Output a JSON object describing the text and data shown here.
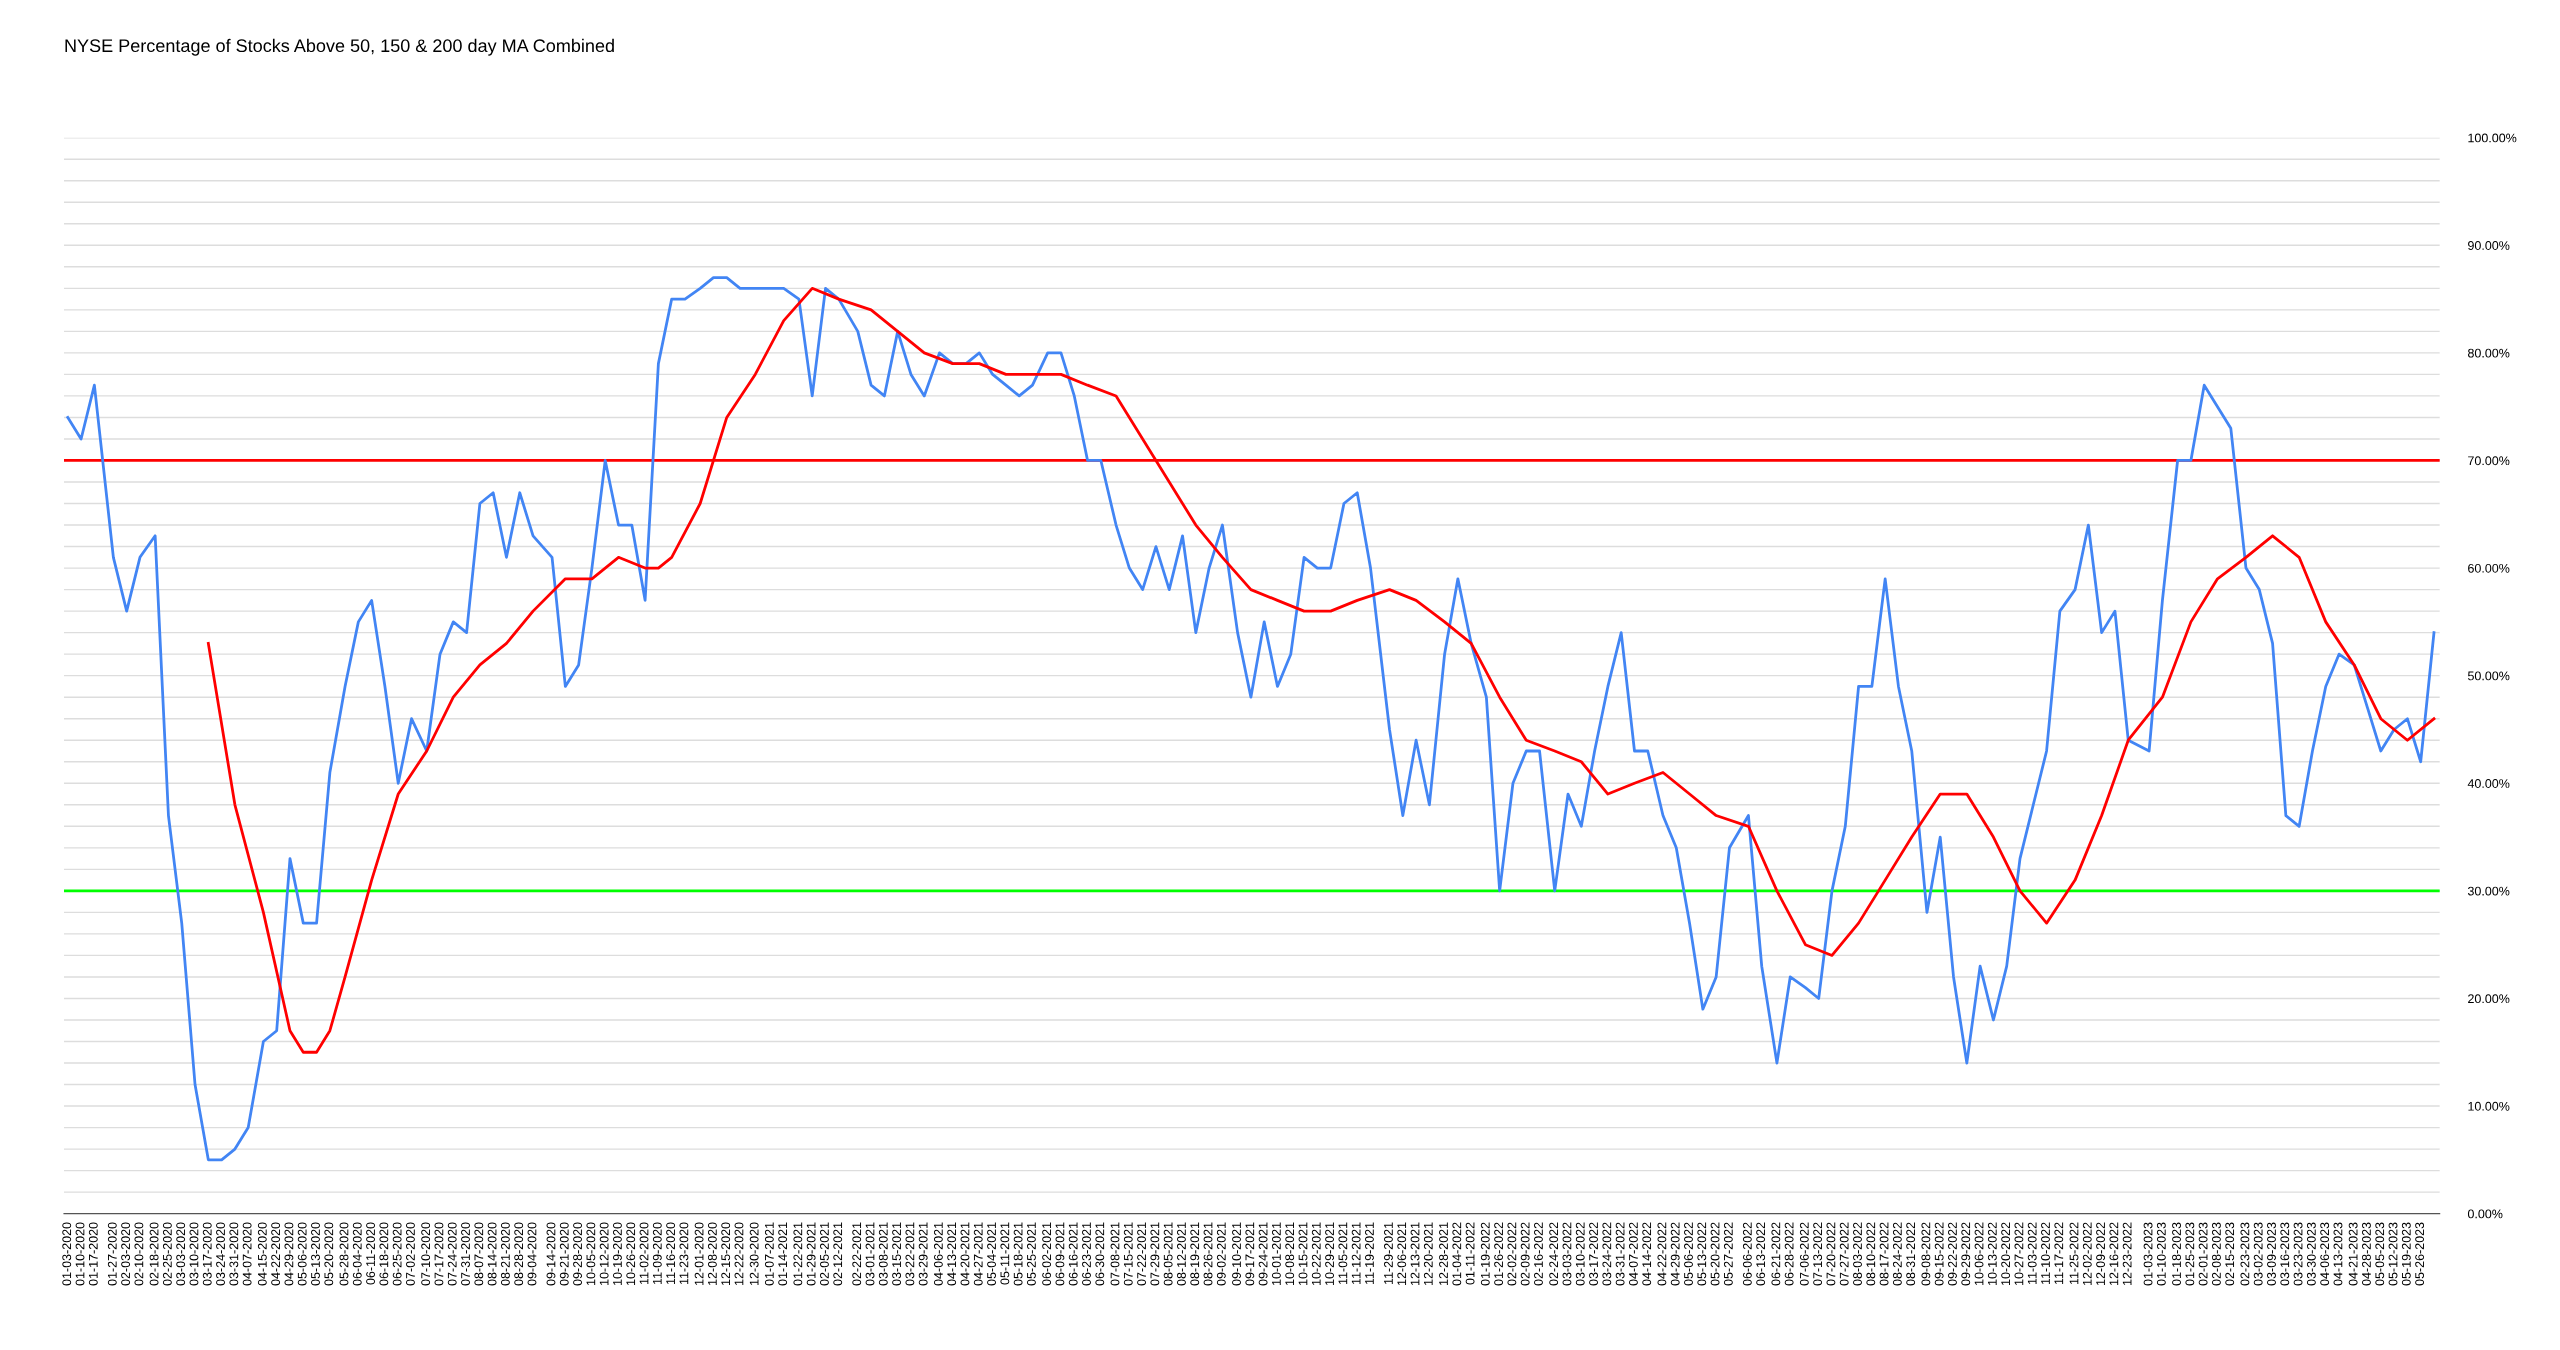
{
  "chart_data": {
    "type": "line",
    "title": "NYSE Percentage of Stocks Above 50, 150 & 200 day MA Combined",
    "xlim": [
      "2020-01-01",
      "2023-06-05"
    ],
    "ylim": [
      0,
      100
    ],
    "yticks": [
      {
        "value": 0,
        "label": "0.00%"
      },
      {
        "value": 2,
        "label": null
      },
      {
        "value": 4,
        "label": null
      },
      {
        "value": 6,
        "label": null
      },
      {
        "value": 8,
        "label": null
      },
      {
        "value": 10,
        "label": "10.00%"
      },
      {
        "value": 12,
        "label": null
      },
      {
        "value": 14,
        "label": null
      },
      {
        "value": 16,
        "label": null
      },
      {
        "value": 18,
        "label": null
      },
      {
        "value": 20,
        "label": "20.00%"
      },
      {
        "value": 22,
        "label": null
      },
      {
        "value": 24,
        "label": null
      },
      {
        "value": 26,
        "label": null
      },
      {
        "value": 28,
        "label": null
      },
      {
        "value": 30,
        "label": "30.00%"
      },
      {
        "value": 32,
        "label": null
      },
      {
        "value": 34,
        "label": null
      },
      {
        "value": 36,
        "label": null
      },
      {
        "value": 38,
        "label": null
      },
      {
        "value": 40,
        "label": "40.00%"
      },
      {
        "value": 42,
        "label": null
      },
      {
        "value": 44,
        "label": null
      },
      {
        "value": 46,
        "label": null
      },
      {
        "value": 48,
        "label": null
      },
      {
        "value": 50,
        "label": "50.00%"
      },
      {
        "value": 52,
        "label": null
      },
      {
        "value": 54,
        "label": null
      },
      {
        "value": 56,
        "label": null
      },
      {
        "value": 58,
        "label": null
      },
      {
        "value": 60,
        "label": "60.00%"
      },
      {
        "value": 62,
        "label": null
      },
      {
        "value": 64,
        "label": null
      },
      {
        "value": 66,
        "label": null
      },
      {
        "value": 68,
        "label": null
      },
      {
        "value": 70,
        "label": "70.00%"
      },
      {
        "value": 72,
        "label": null
      },
      {
        "value": 74,
        "label": null
      },
      {
        "value": 76,
        "label": null
      },
      {
        "value": 78,
        "label": null
      },
      {
        "value": 80,
        "label": "80.00%"
      },
      {
        "value": 82,
        "label": null
      },
      {
        "value": 84,
        "label": null
      },
      {
        "value": 86,
        "label": null
      },
      {
        "value": 88,
        "label": null
      },
      {
        "value": 90,
        "label": "90.00%"
      },
      {
        "value": 92,
        "label": null
      },
      {
        "value": 94,
        "label": null
      },
      {
        "value": 96,
        "label": null
      },
      {
        "value": 98,
        "label": null
      },
      {
        "value": 100,
        "label": "100.00%"
      }
    ],
    "xticks": [
      {
        "value": "2020-01-03",
        "label": "01-03-2020"
      },
      {
        "value": "2020-01-10",
        "label": "01-10-2020"
      },
      {
        "value": "2020-01-17",
        "label": "01-17-2020"
      },
      {
        "value": "2020-01-27",
        "label": "01-27-2020"
      },
      {
        "value": "2020-02-03",
        "label": "02-03-2020"
      },
      {
        "value": "2020-02-10",
        "label": "02-10-2020"
      },
      {
        "value": "2020-02-18",
        "label": "02-18-2020"
      },
      {
        "value": "2020-02-25",
        "label": "02-25-2020"
      },
      {
        "value": "2020-03-03",
        "label": "03-03-2020"
      },
      {
        "value": "2020-03-10",
        "label": "03-10-2020"
      },
      {
        "value": "2020-03-17",
        "label": "03-17-2020"
      },
      {
        "value": "2020-03-24",
        "label": "03-24-2020"
      },
      {
        "value": "2020-03-31",
        "label": "03-31-2020"
      },
      {
        "value": "2020-04-07",
        "label": "04-07-2020"
      },
      {
        "value": "2020-04-15",
        "label": "04-15-2020"
      },
      {
        "value": "2020-04-22",
        "label": "04-22-2020"
      },
      {
        "value": "2020-04-29",
        "label": "04-29-2020"
      },
      {
        "value": "2020-05-06",
        "label": "05-06-2020"
      },
      {
        "value": "2020-05-13",
        "label": "05-13-2020"
      },
      {
        "value": "2020-05-20",
        "label": "05-20-2020"
      },
      {
        "value": "2020-05-28",
        "label": "05-28-2020"
      },
      {
        "value": "2020-06-04",
        "label": "06-04-2020"
      },
      {
        "value": "2020-06-11",
        "label": "06-11-2020"
      },
      {
        "value": "2020-06-18",
        "label": "06-18-2020"
      },
      {
        "value": "2020-06-25",
        "label": "06-25-2020"
      },
      {
        "value": "2020-07-02",
        "label": "07-02-2020"
      },
      {
        "value": "2020-07-10",
        "label": "07-10-2020"
      },
      {
        "value": "2020-07-17",
        "label": "07-17-2020"
      },
      {
        "value": "2020-07-24",
        "label": "07-24-2020"
      },
      {
        "value": "2020-07-31",
        "label": "07-31-2020"
      },
      {
        "value": "2020-08-07",
        "label": "08-07-2020"
      },
      {
        "value": "2020-08-14",
        "label": "08-14-2020"
      },
      {
        "value": "2020-08-21",
        "label": "08-21-2020"
      },
      {
        "value": "2020-08-28",
        "label": "08-28-2020"
      },
      {
        "value": "2020-09-04",
        "label": "09-04-2020"
      },
      {
        "value": "2020-09-14",
        "label": "09-14-2020"
      },
      {
        "value": "2020-09-21",
        "label": "09-21-2020"
      },
      {
        "value": "2020-09-28",
        "label": "09-28-2020"
      },
      {
        "value": "2020-10-05",
        "label": "10-05-2020"
      },
      {
        "value": "2020-10-12",
        "label": "10-12-2020"
      },
      {
        "value": "2020-10-19",
        "label": "10-19-2020"
      },
      {
        "value": "2020-10-26",
        "label": "10-26-2020"
      },
      {
        "value": "2020-11-02",
        "label": "11-02-2020"
      },
      {
        "value": "2020-11-09",
        "label": "11-09-2020"
      },
      {
        "value": "2020-11-16",
        "label": "11-16-2020"
      },
      {
        "value": "2020-11-23",
        "label": "11-23-2020"
      },
      {
        "value": "2020-12-01",
        "label": "12-01-2020"
      },
      {
        "value": "2020-12-08",
        "label": "12-08-2020"
      },
      {
        "value": "2020-12-15",
        "label": "12-15-2020"
      },
      {
        "value": "2020-12-22",
        "label": "12-22-2020"
      },
      {
        "value": "2020-12-30",
        "label": "12-30-2020"
      },
      {
        "value": "2021-01-07",
        "label": "01-07-2021"
      },
      {
        "value": "2021-01-14",
        "label": "01-14-2021"
      },
      {
        "value": "2021-01-22",
        "label": "01-22-2021"
      },
      {
        "value": "2021-01-29",
        "label": "01-29-2021"
      },
      {
        "value": "2021-02-05",
        "label": "02-05-2021"
      },
      {
        "value": "2021-02-12",
        "label": "02-12-2021"
      },
      {
        "value": "2021-02-22",
        "label": "02-22-2021"
      },
      {
        "value": "2021-03-01",
        "label": "03-01-2021"
      },
      {
        "value": "2021-03-08",
        "label": "03-08-2021"
      },
      {
        "value": "2021-03-15",
        "label": "03-15-2021"
      },
      {
        "value": "2021-03-22",
        "label": "03-22-2021"
      },
      {
        "value": "2021-03-29",
        "label": "03-29-2021"
      },
      {
        "value": "2021-04-06",
        "label": "04-06-2021"
      },
      {
        "value": "2021-04-13",
        "label": "04-13-2021"
      },
      {
        "value": "2021-04-20",
        "label": "04-20-2021"
      },
      {
        "value": "2021-04-27",
        "label": "04-27-2021"
      },
      {
        "value": "2021-05-04",
        "label": "05-04-2021"
      },
      {
        "value": "2021-05-11",
        "label": "05-11-2021"
      },
      {
        "value": "2021-05-18",
        "label": "05-18-2021"
      },
      {
        "value": "2021-05-25",
        "label": "05-25-2021"
      },
      {
        "value": "2021-06-02",
        "label": "06-02-2021"
      },
      {
        "value": "2021-06-09",
        "label": "06-09-2021"
      },
      {
        "value": "2021-06-16",
        "label": "06-16-2021"
      },
      {
        "value": "2021-06-23",
        "label": "06-23-2021"
      },
      {
        "value": "2021-06-30",
        "label": "06-30-2021"
      },
      {
        "value": "2021-07-08",
        "label": "07-08-2021"
      },
      {
        "value": "2021-07-15",
        "label": "07-15-2021"
      },
      {
        "value": "2021-07-22",
        "label": "07-22-2021"
      },
      {
        "value": "2021-07-29",
        "label": "07-29-2021"
      },
      {
        "value": "2021-08-05",
        "label": "08-05-2021"
      },
      {
        "value": "2021-08-12",
        "label": "08-12-2021"
      },
      {
        "value": "2021-08-19",
        "label": "08-19-2021"
      },
      {
        "value": "2021-08-26",
        "label": "08-26-2021"
      },
      {
        "value": "2021-09-02",
        "label": "09-02-2021"
      },
      {
        "value": "2021-09-10",
        "label": "09-10-2021"
      },
      {
        "value": "2021-09-17",
        "label": "09-17-2021"
      },
      {
        "value": "2021-09-24",
        "label": "09-24-2021"
      },
      {
        "value": "2021-10-01",
        "label": "10-01-2021"
      },
      {
        "value": "2021-10-08",
        "label": "10-08-2021"
      },
      {
        "value": "2021-10-15",
        "label": "10-15-2021"
      },
      {
        "value": "2021-10-22",
        "label": "10-22-2021"
      },
      {
        "value": "2021-10-29",
        "label": "10-29-2021"
      },
      {
        "value": "2021-11-05",
        "label": "11-05-2021"
      },
      {
        "value": "2021-11-12",
        "label": "11-12-2021"
      },
      {
        "value": "2021-11-19",
        "label": "11-19-2021"
      },
      {
        "value": "2021-11-29",
        "label": "11-29-2021"
      },
      {
        "value": "2021-12-06",
        "label": "12-06-2021"
      },
      {
        "value": "2021-12-13",
        "label": "12-13-2021"
      },
      {
        "value": "2021-12-20",
        "label": "12-20-2021"
      },
      {
        "value": "2021-12-28",
        "label": "12-28-2021"
      },
      {
        "value": "2022-01-04",
        "label": "01-04-2022"
      },
      {
        "value": "2022-01-11",
        "label": "01-11-2022"
      },
      {
        "value": "2022-01-19",
        "label": "01-19-2022"
      },
      {
        "value": "2022-01-26",
        "label": "01-26-2022"
      },
      {
        "value": "2022-02-02",
        "label": "02-02-2022"
      },
      {
        "value": "2022-02-09",
        "label": "02-09-2022"
      },
      {
        "value": "2022-02-16",
        "label": "02-16-2022"
      },
      {
        "value": "2022-02-24",
        "label": "02-24-2022"
      },
      {
        "value": "2022-03-03",
        "label": "03-03-2022"
      },
      {
        "value": "2022-03-10",
        "label": "03-10-2022"
      },
      {
        "value": "2022-03-17",
        "label": "03-17-2022"
      },
      {
        "value": "2022-03-24",
        "label": "03-24-2022"
      },
      {
        "value": "2022-03-31",
        "label": "03-31-2022"
      },
      {
        "value": "2022-04-07",
        "label": "04-07-2022"
      },
      {
        "value": "2022-04-14",
        "label": "04-14-2022"
      },
      {
        "value": "2022-04-22",
        "label": "04-22-2022"
      },
      {
        "value": "2022-04-29",
        "label": "04-29-2022"
      },
      {
        "value": "2022-05-06",
        "label": "05-06-2022"
      },
      {
        "value": "2022-05-13",
        "label": "05-13-2022"
      },
      {
        "value": "2022-05-20",
        "label": "05-20-2022"
      },
      {
        "value": "2022-05-27",
        "label": "05-27-2022"
      },
      {
        "value": "2022-06-06",
        "label": "06-06-2022"
      },
      {
        "value": "2022-06-13",
        "label": "06-13-2022"
      },
      {
        "value": "2022-06-21",
        "label": "06-21-2022"
      },
      {
        "value": "2022-06-28",
        "label": "06-28-2022"
      },
      {
        "value": "2022-07-06",
        "label": "07-06-2022"
      },
      {
        "value": "2022-07-13",
        "label": "07-13-2022"
      },
      {
        "value": "2022-07-20",
        "label": "07-20-2022"
      },
      {
        "value": "2022-07-27",
        "label": "07-27-2022"
      },
      {
        "value": "2022-08-03",
        "label": "08-03-2022"
      },
      {
        "value": "2022-08-10",
        "label": "08-10-2022"
      },
      {
        "value": "2022-08-17",
        "label": "08-17-2022"
      },
      {
        "value": "2022-08-24",
        "label": "08-24-2022"
      },
      {
        "value": "2022-08-31",
        "label": "08-31-2022"
      },
      {
        "value": "2022-09-08",
        "label": "09-08-2022"
      },
      {
        "value": "2022-09-15",
        "label": "09-15-2022"
      },
      {
        "value": "2022-09-22",
        "label": "09-22-2022"
      },
      {
        "value": "2022-09-29",
        "label": "09-29-2022"
      },
      {
        "value": "2022-10-06",
        "label": "10-06-2022"
      },
      {
        "value": "2022-10-13",
        "label": "10-13-2022"
      },
      {
        "value": "2022-10-20",
        "label": "10-20-2022"
      },
      {
        "value": "2022-10-27",
        "label": "10-27-2022"
      },
      {
        "value": "2022-11-03",
        "label": "11-03-2022"
      },
      {
        "value": "2022-11-10",
        "label": "11-10-2022"
      },
      {
        "value": "2022-11-17",
        "label": "11-17-2022"
      },
      {
        "value": "2022-11-25",
        "label": "11-25-2022"
      },
      {
        "value": "2022-12-02",
        "label": "12-02-2022"
      },
      {
        "value": "2022-12-09",
        "label": "12-09-2022"
      },
      {
        "value": "2022-12-16",
        "label": "12-16-2022"
      },
      {
        "value": "2022-12-23",
        "label": "12-23-2022"
      },
      {
        "value": "2023-01-03",
        "label": "01-03-2023"
      },
      {
        "value": "2023-01-10",
        "label": "01-10-2023"
      },
      {
        "value": "2023-01-18",
        "label": "01-18-2023"
      },
      {
        "value": "2023-01-25",
        "label": "01-25-2023"
      },
      {
        "value": "2023-02-01",
        "label": "02-01-2023"
      },
      {
        "value": "2023-02-08",
        "label": "02-08-2023"
      },
      {
        "value": "2023-02-15",
        "label": "02-15-2023"
      },
      {
        "value": "2023-02-23",
        "label": "02-23-2023"
      },
      {
        "value": "2023-03-02",
        "label": "03-02-2023"
      },
      {
        "value": "2023-03-09",
        "label": "03-09-2023"
      },
      {
        "value": "2023-03-16",
        "label": "03-16-2023"
      },
      {
        "value": "2023-03-23",
        "label": "03-23-2023"
      },
      {
        "value": "2023-03-30",
        "label": "03-30-2023"
      },
      {
        "value": "2023-04-06",
        "label": "04-06-2023"
      },
      {
        "value": "2023-04-13",
        "label": "04-13-2023"
      },
      {
        "value": "2023-04-21",
        "label": "04-21-2023"
      },
      {
        "value": "2023-04-28",
        "label": "04-28-2023"
      },
      {
        "value": "2023-05-05",
        "label": "05-05-2023"
      },
      {
        "value": "2023-05-12",
        "label": "05-12-2023"
      },
      {
        "value": "2023-05-19",
        "label": "05-19-2023"
      },
      {
        "value": "2023-05-26",
        "label": "05-26-2023"
      }
    ],
    "grid": "y",
    "ref_lines": [
      {
        "axis": "y",
        "value": 70,
        "color": "#ff0000"
      },
      {
        "axis": "y",
        "value": 30,
        "color": "#00ff00"
      }
    ],
    "series": [
      {
        "color": "#4285f4",
        "x": [
          "2020-01-03",
          "2020-01-10",
          "2020-01-17",
          "2020-01-27",
          "2020-02-03",
          "2020-02-10",
          "2020-02-18",
          "2020-02-25",
          "2020-03-03",
          "2020-03-10",
          "2020-03-17",
          "2020-03-24",
          "2020-03-31",
          "2020-04-07",
          "2020-04-15",
          "2020-04-22",
          "2020-04-29",
          "2020-05-06",
          "2020-05-13",
          "2020-05-20",
          "2020-05-28",
          "2020-06-04",
          "2020-06-11",
          "2020-06-18",
          "2020-06-25",
          "2020-07-02",
          "2020-07-10",
          "2020-07-17",
          "2020-07-24",
          "2020-07-31",
          "2020-08-07",
          "2020-08-14",
          "2020-08-21",
          "2020-08-28",
          "2020-09-04",
          "2020-09-14",
          "2020-09-21",
          "2020-09-28",
          "2020-10-05",
          "2020-10-12",
          "2020-10-19",
          "2020-10-26",
          "2020-11-02",
          "2020-11-09",
          "2020-11-16",
          "2020-11-23",
          "2020-12-01",
          "2020-12-08",
          "2020-12-15",
          "2020-12-22",
          "2020-12-30",
          "2021-01-07",
          "2021-01-14",
          "2021-01-22",
          "2021-01-29",
          "2021-02-05",
          "2021-02-12",
          "2021-02-22",
          "2021-03-01",
          "2021-03-08",
          "2021-03-15",
          "2021-03-22",
          "2021-03-29",
          "2021-04-06",
          "2021-04-13",
          "2021-04-20",
          "2021-04-27",
          "2021-05-04",
          "2021-05-11",
          "2021-05-18",
          "2021-05-25",
          "2021-06-02",
          "2021-06-09",
          "2021-06-16",
          "2021-06-23",
          "2021-06-30",
          "2021-07-08",
          "2021-07-15",
          "2021-07-22",
          "2021-07-29",
          "2021-08-05",
          "2021-08-12",
          "2021-08-19",
          "2021-08-26",
          "2021-09-02",
          "2021-09-10",
          "2021-09-17",
          "2021-09-24",
          "2021-10-01",
          "2021-10-08",
          "2021-10-15",
          "2021-10-22",
          "2021-10-29",
          "2021-11-05",
          "2021-11-12",
          "2021-11-19",
          "2021-11-29",
          "2021-12-06",
          "2021-12-13",
          "2021-12-20",
          "2021-12-28",
          "2022-01-04",
          "2022-01-11",
          "2022-01-19",
          "2022-01-26",
          "2022-02-02",
          "2022-02-09",
          "2022-02-16",
          "2022-02-24",
          "2022-03-03",
          "2022-03-10",
          "2022-03-17",
          "2022-03-24",
          "2022-03-31",
          "2022-04-07",
          "2022-04-14",
          "2022-04-22",
          "2022-04-29",
          "2022-05-06",
          "2022-05-13",
          "2022-05-20",
          "2022-05-27",
          "2022-06-06",
          "2022-06-13",
          "2022-06-21",
          "2022-06-28",
          "2022-07-06",
          "2022-07-13",
          "2022-07-20",
          "2022-07-27",
          "2022-08-03",
          "2022-08-10",
          "2022-08-17",
          "2022-08-24",
          "2022-08-31",
          "2022-09-08",
          "2022-09-15",
          "2022-09-22",
          "2022-09-29",
          "2022-10-06",
          "2022-10-13",
          "2022-10-20",
          "2022-10-27",
          "2022-11-03",
          "2022-11-10",
          "2022-11-17",
          "2022-11-25",
          "2022-12-02",
          "2022-12-09",
          "2022-12-16",
          "2022-12-23",
          "2023-01-03",
          "2023-01-10",
          "2023-01-18",
          "2023-01-25",
          "2023-02-01",
          "2023-02-08",
          "2023-02-15",
          "2023-02-23",
          "2023-03-02",
          "2023-03-09",
          "2023-03-16",
          "2023-03-23",
          "2023-03-30",
          "2023-04-06",
          "2023-04-13",
          "2023-04-21",
          "2023-04-28",
          "2023-05-05",
          "2023-05-12",
          "2023-05-19",
          "2023-05-26",
          "2023-06-02"
        ],
        "values": [
          74,
          72,
          77,
          61,
          56,
          61,
          63,
          37,
          27,
          12,
          5,
          5,
          6,
          8,
          16,
          17,
          33,
          27,
          27,
          41,
          49,
          55,
          57,
          49,
          40,
          46,
          43,
          52,
          55,
          54,
          66,
          67,
          61,
          67,
          63,
          61,
          49,
          51,
          60,
          70,
          64,
          64,
          57,
          79,
          85,
          85,
          86,
          87,
          87,
          86,
          86,
          86,
          86,
          85,
          76,
          86,
          85,
          82,
          77,
          76,
          82,
          78,
          76,
          80,
          79,
          79,
          80,
          78,
          77,
          76,
          77,
          80,
          80,
          76,
          70,
          70,
          64,
          60,
          58,
          62,
          58,
          63,
          54,
          60,
          64,
          54,
          48,
          55,
          49,
          52,
          61,
          60,
          60,
          66,
          67,
          60,
          45,
          37,
          44,
          38,
          52,
          59,
          53,
          48,
          30,
          40,
          43,
          43,
          30,
          39,
          36,
          43,
          49,
          54,
          43,
          43,
          37,
          34,
          27,
          19,
          22,
          34,
          37,
          23,
          14,
          22,
          21,
          20,
          30,
          36,
          49,
          49,
          59,
          49,
          43,
          28,
          35,
          22,
          14,
          23,
          18,
          23,
          33,
          38,
          43,
          56,
          58,
          64,
          54,
          56,
          44,
          43,
          57,
          70,
          70,
          77,
          75,
          73,
          60,
          58,
          53,
          37,
          36,
          43,
          49,
          52,
          51,
          47,
          43,
          45,
          46,
          42,
          54
        ]
      },
      {
        "color": "#ff0000",
        "x": [
          "2020-03-17",
          "2020-03-31",
          "2020-04-15",
          "2020-04-29",
          "2020-05-06",
          "2020-05-13",
          "2020-05-20",
          "2020-05-28",
          "2020-06-11",
          "2020-06-25",
          "2020-07-10",
          "2020-07-24",
          "2020-08-07",
          "2020-08-21",
          "2020-09-04",
          "2020-09-21",
          "2020-10-05",
          "2020-10-19",
          "2020-11-02",
          "2020-11-09",
          "2020-11-16",
          "2020-12-01",
          "2020-12-15",
          "2020-12-30",
          "2021-01-14",
          "2021-01-29",
          "2021-02-12",
          "2021-03-01",
          "2021-03-15",
          "2021-03-29",
          "2021-04-13",
          "2021-04-27",
          "2021-05-11",
          "2021-05-25",
          "2021-06-09",
          "2021-06-23",
          "2021-07-08",
          "2021-07-22",
          "2021-08-05",
          "2021-08-19",
          "2021-09-02",
          "2021-09-17",
          "2021-10-01",
          "2021-10-15",
          "2021-10-29",
          "2021-11-12",
          "2021-11-29",
          "2021-12-13",
          "2021-12-28",
          "2022-01-11",
          "2022-01-26",
          "2022-02-09",
          "2022-02-24",
          "2022-03-10",
          "2022-03-24",
          "2022-04-07",
          "2022-04-22",
          "2022-05-06",
          "2022-05-20",
          "2022-06-06",
          "2022-06-21",
          "2022-07-06",
          "2022-07-20",
          "2022-08-03",
          "2022-08-17",
          "2022-08-31",
          "2022-09-15",
          "2022-09-29",
          "2022-10-13",
          "2022-10-27",
          "2022-11-10",
          "2022-11-25",
          "2022-12-09",
          "2022-12-23",
          "2023-01-10",
          "2023-01-25",
          "2023-02-08",
          "2023-02-23",
          "2023-03-09",
          "2023-03-23",
          "2023-04-06",
          "2023-04-21",
          "2023-05-05",
          "2023-05-19",
          "2023-06-02"
        ],
        "values": [
          53,
          38,
          28,
          17,
          15,
          15,
          17,
          22,
          31,
          39,
          43,
          48,
          51,
          53,
          56,
          59,
          59,
          61,
          60,
          60,
          61,
          66,
          74,
          78,
          83,
          86,
          85,
          84,
          82,
          80,
          79,
          79,
          78,
          78,
          78,
          77,
          76,
          72,
          68,
          64,
          61,
          58,
          57,
          56,
          56,
          57,
          58,
          57,
          55,
          53,
          48,
          44,
          43,
          42,
          39,
          40,
          41,
          39,
          37,
          36,
          30,
          25,
          24,
          27,
          31,
          35,
          39,
          39,
          35,
          30,
          27,
          31,
          37,
          44,
          48,
          55,
          59,
          61,
          63,
          61,
          55,
          51,
          46,
          44,
          46
        ]
      }
    ]
  }
}
